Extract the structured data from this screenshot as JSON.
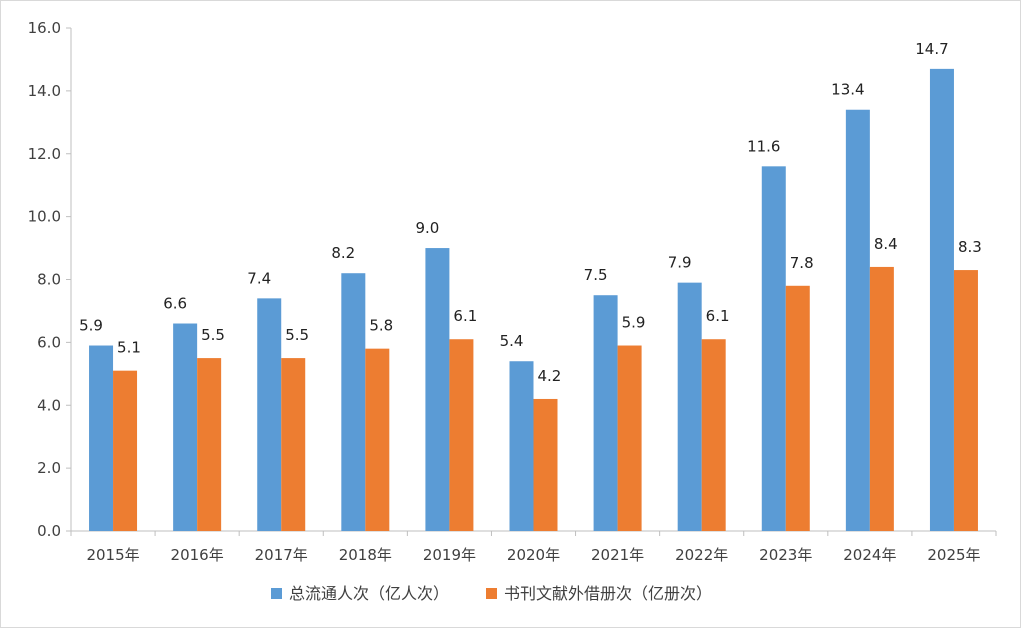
{
  "chart_data": {
    "type": "bar",
    "categories": [
      "2015年",
      "2016年",
      "2017年",
      "2018年",
      "2019年",
      "2020年",
      "2021年",
      "2022年",
      "2023年",
      "2024年",
      "2025年"
    ],
    "series": [
      {
        "name": "总流通人次（亿人次）",
        "color": "#5b9bd5",
        "values": [
          5.9,
          6.6,
          7.4,
          8.2,
          9.0,
          5.4,
          7.5,
          7.9,
          11.6,
          13.4,
          14.7
        ],
        "labels": [
          "5.9",
          "6.6",
          "7.4",
          "8.2",
          "9.0",
          "5.4",
          "7.5",
          "7.9",
          "11.6",
          "13.4",
          "14.7"
        ]
      },
      {
        "name": "书刊文献外借册次（亿册次）",
        "color": "#ed7d31",
        "values": [
          5.1,
          5.5,
          5.5,
          5.8,
          6.1,
          4.2,
          5.9,
          6.1,
          7.8,
          8.4,
          8.3
        ],
        "labels": [
          "5.1",
          "5.5",
          "5.5",
          "5.8",
          "6.1",
          "4.2",
          "5.9",
          "6.1",
          "7.8",
          "8.4",
          "8.3"
        ]
      }
    ],
    "ylim": [
      0,
      16
    ],
    "yticks": [
      "0.0",
      "2.0",
      "4.0",
      "6.0",
      "8.0",
      "10.0",
      "12.0",
      "14.0",
      "16.0"
    ],
    "ytick_values": [
      0,
      2,
      4,
      6,
      8,
      10,
      12,
      14,
      16
    ],
    "grid": false,
    "legend_position": "bottom"
  }
}
